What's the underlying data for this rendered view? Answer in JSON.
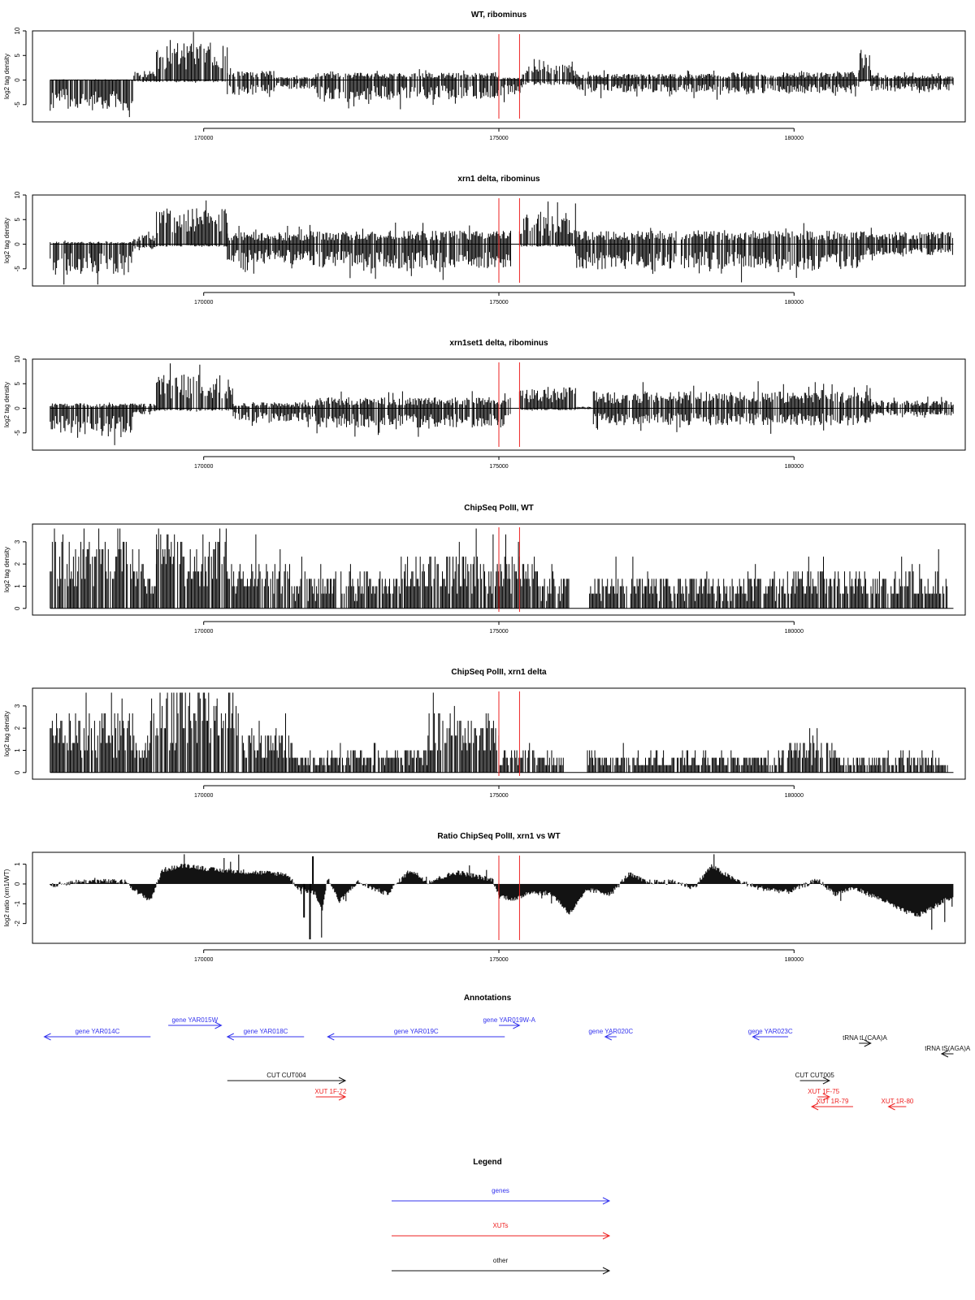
{
  "chart_data": [
    {
      "type": "bar",
      "title": "WT, ribominus",
      "xlabel": "",
      "ylabel": "log2 tag density",
      "xlim": [
        167100,
        182900
      ],
      "ylim": [
        -8.5,
        10
      ],
      "yticks": [
        -5,
        0,
        5,
        10
      ],
      "xticks": [
        170000,
        175000,
        180000
      ],
      "vlines": [
        175000,
        175350
      ],
      "segments": [
        {
          "from": 167400,
          "to": 168800,
          "pos": 0.1,
          "neg": -5
        },
        {
          "from": 168800,
          "to": 169200,
          "pos": 1.5,
          "neg": -0.3
        },
        {
          "from": 169200,
          "to": 170400,
          "pos": 6,
          "neg": -0.3
        },
        {
          "from": 170400,
          "to": 171200,
          "pos": 1.5,
          "neg": -2.5
        },
        {
          "from": 171200,
          "to": 171900,
          "pos": 0.5,
          "neg": -1.5
        },
        {
          "from": 171900,
          "to": 175000,
          "pos": 1.2,
          "neg": -3.2
        },
        {
          "from": 175000,
          "to": 175400,
          "pos": 0.4,
          "neg": -2.5
        },
        {
          "from": 175400,
          "to": 176300,
          "pos": 2.5,
          "neg": -0.8
        },
        {
          "from": 176300,
          "to": 178500,
          "pos": 1,
          "neg": -2
        },
        {
          "from": 178500,
          "to": 181100,
          "pos": 1.3,
          "neg": -2.2
        },
        {
          "from": 181100,
          "to": 181300,
          "pos": 5,
          "neg": -0.3
        },
        {
          "from": 181300,
          "to": 182700,
          "pos": 0.8,
          "neg": -1.8
        }
      ]
    },
    {
      "type": "bar",
      "title": "xrn1 delta, ribominus",
      "xlabel": "",
      "ylabel": "log2 tag density",
      "xlim": [
        167100,
        182900
      ],
      "ylim": [
        -8.5,
        10
      ],
      "yticks": [
        -5,
        0,
        5,
        10
      ],
      "xticks": [
        170000,
        175000,
        180000
      ],
      "vlines": [
        175000,
        175350
      ],
      "segments": [
        {
          "from": 167400,
          "to": 168800,
          "pos": 0.4,
          "neg": -5
        },
        {
          "from": 168800,
          "to": 169200,
          "pos": 1.5,
          "neg": -1
        },
        {
          "from": 169200,
          "to": 170400,
          "pos": 6,
          "neg": -0.4
        },
        {
          "from": 170400,
          "to": 171800,
          "pos": 2,
          "neg": -3.2
        },
        {
          "from": 171800,
          "to": 175200,
          "pos": 2.2,
          "neg": -4
        },
        {
          "from": 175350,
          "to": 176300,
          "pos": 4.5,
          "neg": -0.4
        },
        {
          "from": 176300,
          "to": 181200,
          "pos": 2.2,
          "neg": -4.2
        },
        {
          "from": 181200,
          "to": 182700,
          "pos": 2,
          "neg": -2
        }
      ]
    },
    {
      "type": "bar",
      "title": "xrn1set1 delta, ribominus",
      "xlabel": "",
      "ylabel": "log2 tag density",
      "xlim": [
        167100,
        182900
      ],
      "ylim": [
        -8.5,
        10
      ],
      "yticks": [
        -5,
        0,
        5,
        10
      ],
      "xticks": [
        170000,
        175000,
        180000
      ],
      "vlines": [
        175000,
        175350
      ],
      "segments": [
        {
          "from": 167400,
          "to": 168800,
          "pos": 0.8,
          "neg": -4
        },
        {
          "from": 168800,
          "to": 169200,
          "pos": 0.8,
          "neg": -1
        },
        {
          "from": 169200,
          "to": 170500,
          "pos": 5.5,
          "neg": -0.4
        },
        {
          "from": 170500,
          "to": 171900,
          "pos": 1,
          "neg": -2.2
        },
        {
          "from": 171900,
          "to": 175200,
          "pos": 1.8,
          "neg": -3.2
        },
        {
          "from": 175350,
          "to": 176300,
          "pos": 3.5,
          "neg": -0.3
        },
        {
          "from": 176300,
          "to": 176600,
          "pos": 0.3,
          "neg": -0.2
        },
        {
          "from": 176600,
          "to": 181300,
          "pos": 2.8,
          "neg": -2.8
        },
        {
          "from": 181300,
          "to": 182700,
          "pos": 1.3,
          "neg": -1.2
        }
      ]
    },
    {
      "type": "bar",
      "title": "ChipSeq PolII, WT",
      "xlabel": "",
      "ylabel": "log2 tag density",
      "xlim": [
        167100,
        182900
      ],
      "ylim": [
        -0.3,
        3.8
      ],
      "yticks": [
        0,
        1,
        2,
        3
      ],
      "xticks": [
        170000,
        175000,
        180000
      ],
      "vlines": [
        175000,
        175350
      ],
      "segments": [
        {
          "from": 167400,
          "to": 169000,
          "pos": 2.6,
          "neg": 0
        },
        {
          "from": 169000,
          "to": 169200,
          "pos": 1.2,
          "neg": 0
        },
        {
          "from": 169200,
          "to": 170400,
          "pos": 2.8,
          "neg": 0
        },
        {
          "from": 170400,
          "to": 171500,
          "pos": 1.6,
          "neg": 0
        },
        {
          "from": 171500,
          "to": 172200,
          "pos": 1.1,
          "neg": 0
        },
        {
          "from": 172200,
          "to": 173400,
          "pos": 1.3,
          "neg": 0
        },
        {
          "from": 173400,
          "to": 175700,
          "pos": 1.9,
          "neg": 0
        },
        {
          "from": 175700,
          "to": 176200,
          "pos": 1.2,
          "neg": 0
        },
        {
          "from": 176500,
          "to": 179800,
          "pos": 1.2,
          "neg": 0
        },
        {
          "from": 179800,
          "to": 182600,
          "pos": 1.4,
          "neg": 0
        }
      ]
    },
    {
      "type": "bar",
      "title": "ChipSeq PolII, xrn1 delta",
      "xlabel": "",
      "ylabel": "log2 tag density",
      "xlim": [
        167100,
        182900
      ],
      "ylim": [
        -0.3,
        3.8
      ],
      "yticks": [
        0,
        1,
        2,
        3
      ],
      "xticks": [
        170000,
        175000,
        180000
      ],
      "vlines": [
        175000,
        175350
      ],
      "segments": [
        {
          "from": 167400,
          "to": 168800,
          "pos": 2.2,
          "neg": 0
        },
        {
          "from": 168800,
          "to": 169100,
          "pos": 1.3,
          "neg": 0
        },
        {
          "from": 169100,
          "to": 170600,
          "pos": 3.2,
          "neg": 0
        },
        {
          "from": 170600,
          "to": 171500,
          "pos": 1.5,
          "neg": 0
        },
        {
          "from": 171500,
          "to": 172100,
          "pos": 0.7,
          "neg": 0
        },
        {
          "from": 172100,
          "to": 173800,
          "pos": 0.9,
          "neg": 0
        },
        {
          "from": 173800,
          "to": 175000,
          "pos": 2.2,
          "neg": 0
        },
        {
          "from": 175000,
          "to": 176100,
          "pos": 0.8,
          "neg": 0
        },
        {
          "from": 176500,
          "to": 179800,
          "pos": 0.7,
          "neg": 0
        },
        {
          "from": 179800,
          "to": 180700,
          "pos": 1.2,
          "neg": 0
        },
        {
          "from": 180700,
          "to": 182600,
          "pos": 0.6,
          "neg": 0
        }
      ]
    },
    {
      "type": "area",
      "title": "Ratio ChipSeq PolII, xrn1 vs WT",
      "xlabel": "",
      "ylabel": "log2 ratio (xrn1/WT)",
      "xlim": [
        167100,
        182900
      ],
      "ylim": [
        -3,
        1.6
      ],
      "yticks": [
        -2,
        -1,
        0,
        1
      ],
      "xticks": [
        170000,
        175000,
        180000
      ],
      "vlines": [
        175000,
        175350
      ],
      "curve": [
        [
          167400,
          -0.1
        ],
        [
          167800,
          0.1
        ],
        [
          168200,
          0.15
        ],
        [
          168700,
          0.1
        ],
        [
          168900,
          -0.5
        ],
        [
          169100,
          -0.8
        ],
        [
          169300,
          0.7
        ],
        [
          169700,
          0.95
        ],
        [
          170200,
          0.7
        ],
        [
          170800,
          0.6
        ],
        [
          171400,
          0.5
        ],
        [
          171600,
          -0.2
        ],
        [
          171900,
          -0.5
        ],
        [
          172000,
          -1.4
        ],
        [
          172100,
          0.3
        ],
        [
          172300,
          -0.9
        ],
        [
          172600,
          0.1
        ],
        [
          173100,
          -0.5
        ],
        [
          173500,
          0.7
        ],
        [
          173800,
          0.1
        ],
        [
          174300,
          0.6
        ],
        [
          174900,
          0.2
        ],
        [
          175000,
          -0.6
        ],
        [
          175300,
          -0.8
        ],
        [
          175500,
          -0.4
        ],
        [
          175900,
          -0.5
        ],
        [
          176200,
          -1.5
        ],
        [
          176500,
          -0.3
        ],
        [
          176900,
          -0.5
        ],
        [
          177200,
          0.5
        ],
        [
          177500,
          0.1
        ],
        [
          178000,
          0.1
        ],
        [
          178300,
          -0.2
        ],
        [
          178600,
          0.9
        ],
        [
          179000,
          0.2
        ],
        [
          179400,
          -0.2
        ],
        [
          179900,
          -0.4
        ],
        [
          180400,
          0.2
        ],
        [
          180700,
          -0.5
        ],
        [
          181000,
          -0.2
        ],
        [
          181500,
          -0.8
        ],
        [
          181800,
          -1.3
        ],
        [
          182100,
          -1.6
        ],
        [
          182400,
          -1.1
        ],
        [
          182700,
          -0.6
        ]
      ]
    }
  ],
  "annotations": {
    "title": "Annotations",
    "features": [
      {
        "label": "gene YAR014C",
        "type": "gene",
        "dir": "left",
        "from": 167300,
        "to": 169100,
        "row": 1
      },
      {
        "label": "gene YAR015W",
        "type": "gene",
        "dir": "right",
        "from": 169400,
        "to": 170300,
        "row": 0
      },
      {
        "label": "gene YAR018C",
        "type": "gene",
        "dir": "left",
        "from": 170400,
        "to": 171700,
        "row": 1
      },
      {
        "label": "gene YAR019C",
        "type": "gene",
        "dir": "left",
        "from": 172100,
        "to": 175100,
        "row": 1
      },
      {
        "label": "gene YAR019W-A",
        "type": "gene",
        "dir": "right",
        "from": 175000,
        "to": 175350,
        "row": 0
      },
      {
        "label": "gene YAR020C",
        "type": "gene",
        "dir": "left",
        "from": 176800,
        "to": 176900,
        "row": 1
      },
      {
        "label": "gene YAR023C",
        "type": "gene",
        "dir": "left",
        "from": 179300,
        "to": 179900,
        "row": 1
      },
      {
        "label": "tRNA tL(CAA)A",
        "type": "other",
        "dir": "right",
        "from": 181100,
        "to": 181300,
        "row": 2
      },
      {
        "label": "tRNA tS(AGA)A",
        "type": "other",
        "dir": "left",
        "from": 182500,
        "to": 182700,
        "row": 3
      },
      {
        "label": "CUT CUT004",
        "type": "other",
        "dir": "right",
        "from": 170400,
        "to": 172400,
        "row": 4
      },
      {
        "label": "CUT CUT005",
        "type": "other",
        "dir": "right",
        "from": 180100,
        "to": 180600,
        "row": 4
      },
      {
        "label": "XUT 1F-72",
        "type": "xut",
        "dir": "right",
        "from": 171900,
        "to": 172400,
        "row": 5
      },
      {
        "label": "XUT 1F-75",
        "type": "xut",
        "dir": "right",
        "from": 180400,
        "to": 180600,
        "row": 5
      },
      {
        "label": "XUT 1R-79",
        "type": "xut",
        "dir": "left",
        "from": 180300,
        "to": 181000,
        "row": 6
      },
      {
        "label": "XUT 1R-80",
        "type": "xut",
        "dir": "left",
        "from": 181600,
        "to": 181900,
        "row": 6
      }
    ]
  },
  "legend": {
    "title": "Legend",
    "items": [
      {
        "label": "genes",
        "type": "gene"
      },
      {
        "label": "XUTs",
        "type": "xut"
      },
      {
        "label": "other",
        "type": "other"
      }
    ]
  },
  "colors": {
    "gene": "#3333ee",
    "xut": "#ee2222",
    "other": "#111111",
    "marker": "#ee2222",
    "bars": "#000000"
  }
}
